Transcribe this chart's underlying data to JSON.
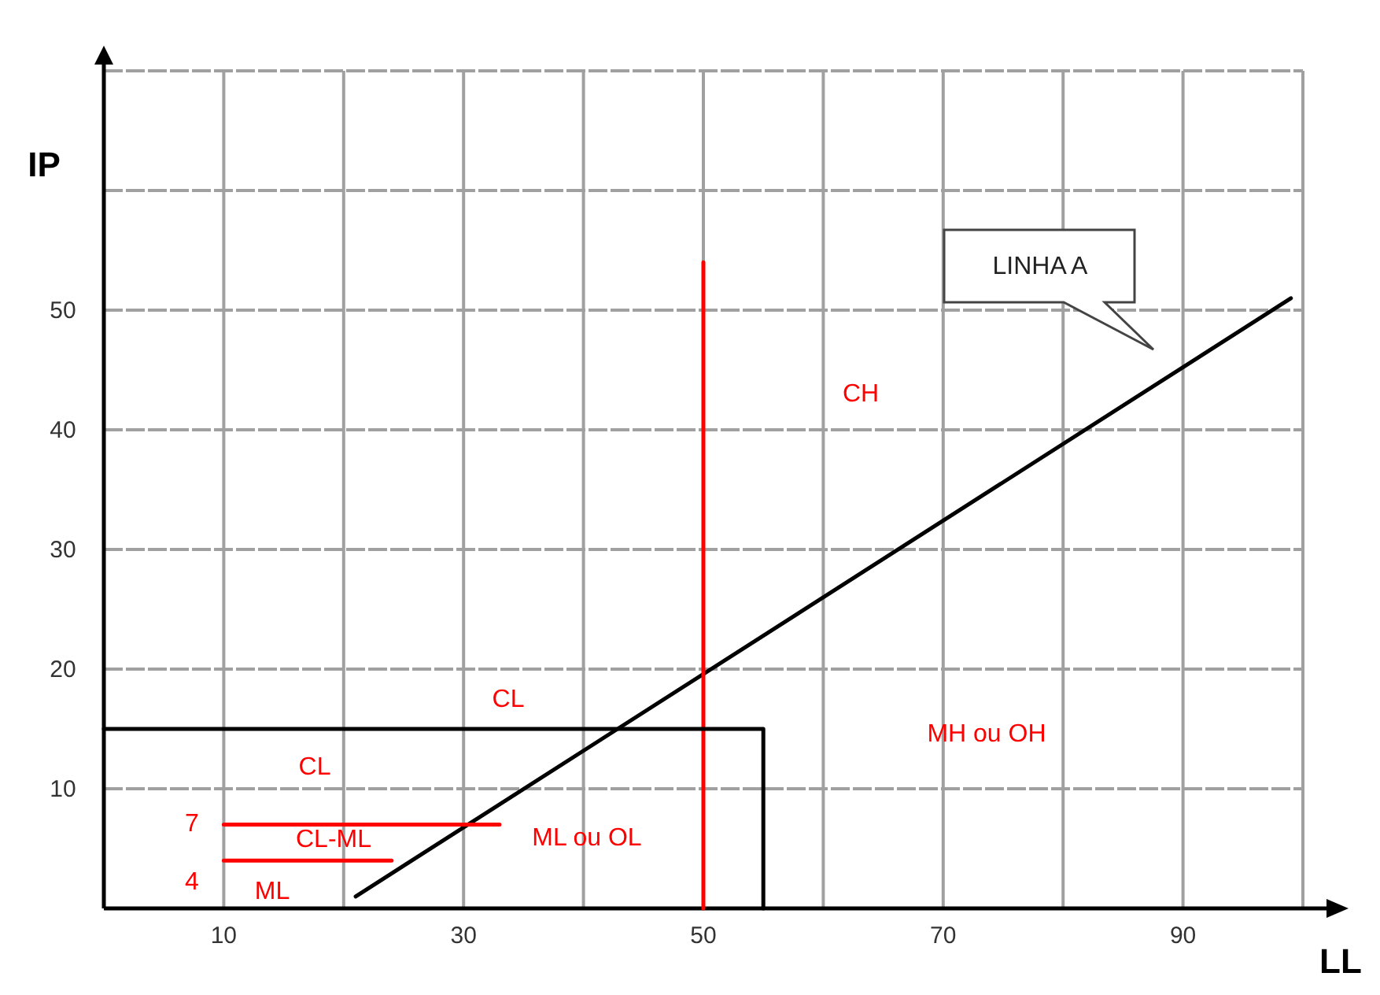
{
  "chart_data": {
    "type": "line",
    "xlabel": "LL",
    "ylabel": "IP",
    "xlim": [
      0,
      100
    ],
    "ylim": [
      0,
      70
    ],
    "xticks": [
      {
        "value": 0,
        "label": null
      },
      10,
      {
        "value": 20,
        "label": null
      },
      30,
      {
        "value": 40,
        "label": null
      },
      50,
      {
        "value": 60,
        "label": null
      },
      70,
      {
        "value": 80,
        "label": null
      },
      90,
      {
        "value": 100,
        "label": null
      }
    ],
    "yticks": [
      {
        "value": 0,
        "label": null
      },
      10,
      20,
      30,
      40,
      50,
      {
        "value": 60,
        "label": null
      },
      {
        "value": 70,
        "label": null
      }
    ],
    "grid": true,
    "marker": "none",
    "line_style": "solid",
    "series": [
      {
        "color": "#000000",
        "x": [
          21,
          99
        ],
        "values": [
          1,
          51
        ]
      },
      {
        "color": "#ff0000",
        "x": [
          50,
          50
        ],
        "values": [
          0,
          54
        ]
      },
      {
        "color": "#ff0000",
        "x": [
          10,
          33
        ],
        "values": [
          7,
          7
        ]
      },
      {
        "color": "#ff0000",
        "x": [
          10,
          24
        ],
        "values": [
          4,
          4
        ]
      },
      {
        "color": "#000000",
        "x": [
          0,
          55,
          55
        ],
        "values": [
          15,
          15,
          0
        ]
      }
    ],
    "annotations": [
      "LINHA A",
      "CH",
      "CL",
      "CL",
      "MH ou OH",
      "ML ou OL",
      "CL-ML",
      "ML",
      "7",
      "4"
    ]
  }
}
